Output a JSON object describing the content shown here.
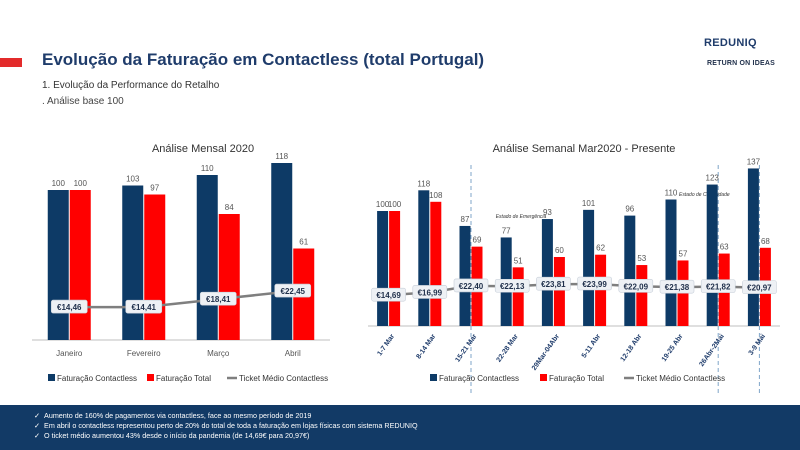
{
  "header": {
    "title": "Evolução da Faturação em Contactless (total Portugal)",
    "subtitle": "1.  Evolução da Performance do Retalho",
    "note": ". Análise base 100",
    "logo_main": "REDUNIQ",
    "logo_secondary": "RETURN ON IDEAS"
  },
  "colors": {
    "navy": "#0d3a66",
    "red": "#ff0000",
    "line": "#7f7f7f",
    "footer": "#123a66"
  },
  "chart_data": [
    {
      "type": "bar",
      "title": "Análise Mensal 2020",
      "categories": [
        "Janeiro",
        "Fevereiro",
        "Março",
        "Abril"
      ],
      "series": [
        {
          "name": "Faturação Contactless",
          "values": [
            100,
            103,
            110,
            118
          ]
        },
        {
          "name": "Faturação Total",
          "values": [
            100,
            97,
            84,
            61
          ]
        },
        {
          "name": "Ticket Médio Contactless",
          "type": "line",
          "values": [
            14.46,
            14.41,
            18.41,
            22.45
          ],
          "labels": [
            "€14,46",
            "€14,41",
            "€18,41",
            "€22,45"
          ]
        }
      ],
      "grid": false,
      "legend": "bottom"
    },
    {
      "type": "bar",
      "title": "Análise Semanal Mar2020 - Presente",
      "categories": [
        "1-7 Mar",
        "8-14 Mar",
        "15-21 Mar",
        "22-28 Mar",
        "29Mar-04Abr",
        "5-11 Abr",
        "12-18 Abr",
        "19-25 Abr",
        "26Abr-2Mai",
        "3-9 Mai"
      ],
      "series": [
        {
          "name": "Faturação Contactless",
          "values": [
            100,
            118,
            87,
            77,
            93,
            101,
            96,
            110,
            123,
            137
          ]
        },
        {
          "name": "Faturação Total",
          "values": [
            100,
            108,
            69,
            51,
            60,
            62,
            53,
            57,
            63,
            68
          ]
        },
        {
          "name": "Ticket Médio Contactless",
          "type": "line",
          "values": [
            14.69,
            16.99,
            22.4,
            22.13,
            23.81,
            23.99,
            22.09,
            21.38,
            21.82,
            20.97
          ],
          "labels": [
            "€14,69",
            "€16,99",
            "€22,40",
            "€22,13",
            "€23,81",
            "€23,99",
            "€22,09",
            "€21,38",
            "€21,82",
            "€20,97"
          ]
        }
      ],
      "annotations": [
        "Estado de Emergência",
        "Estado de Calamidade"
      ],
      "grid": false,
      "legend": "bottom"
    }
  ],
  "footer": {
    "bullets": [
      "Aumento de 160% de pagamentos via contactless, face ao mesmo período de 2019",
      "Em abril o contactless representou perto de 20% do total de toda a faturação em lojas físicas com sistema REDUNIQ",
      "O ticket médio aumentou 43% desde o início da pandemia (de 14,69€ para 20,97€)"
    ]
  }
}
